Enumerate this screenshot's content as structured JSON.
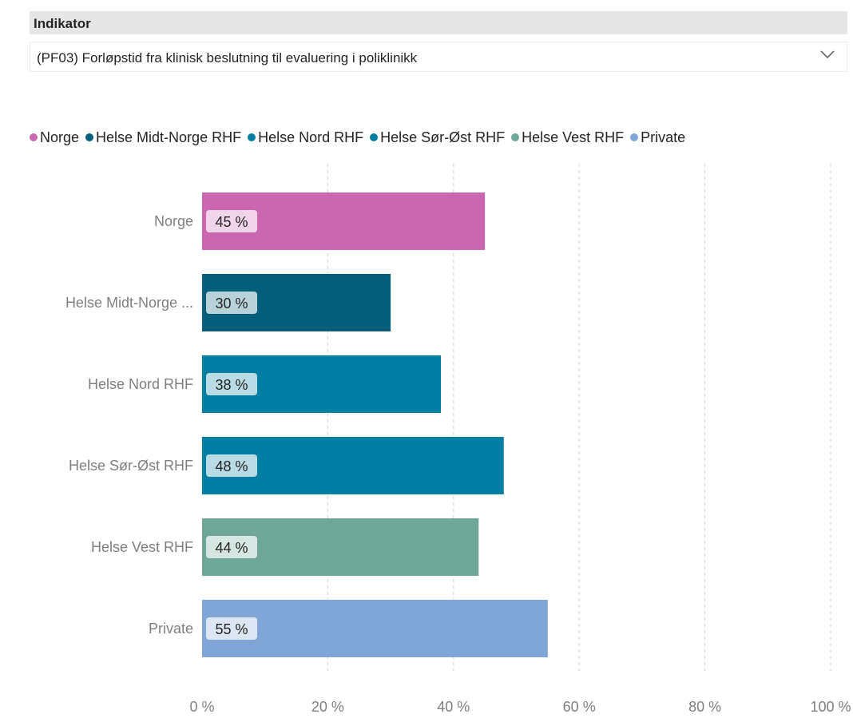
{
  "slicer": {
    "title": "Indikator",
    "selected": "(PF03) Forløpstid fra klinisk beslutning til evaluering i poliklinikk",
    "chevron_icon": "chevron-down-icon"
  },
  "legend": [
    {
      "label": "Norge",
      "color": "#cb67b0"
    },
    {
      "label": "Helse Midt-Norge RHF",
      "color": "#035e7b"
    },
    {
      "label": "Helse Nord RHF",
      "color": "#017fa3"
    },
    {
      "label": "Helse Sør-Øst RHF",
      "color": "#017fa3"
    },
    {
      "label": "Helse Vest RHF",
      "color": "#6ea697"
    },
    {
      "label": "Private",
      "color": "#80a6d8"
    }
  ],
  "chart_data": {
    "type": "bar",
    "orientation": "horizontal",
    "categories": [
      "Norge",
      "Helse Midt-Norge ...",
      "Helse Nord RHF",
      "Helse Sør-Øst RHF",
      "Helse Vest RHF",
      "Private"
    ],
    "values": [
      45,
      30,
      38,
      48,
      44,
      55
    ],
    "value_labels": [
      "45 %",
      "30 %",
      "38 %",
      "48 %",
      "44 %",
      "55 %"
    ],
    "colors": [
      "#cb67b0",
      "#035e7b",
      "#017fa3",
      "#017fa3",
      "#6ea697",
      "#80a6d8"
    ],
    "xlim": [
      0,
      100
    ],
    "x_ticks": [
      0,
      20,
      40,
      60,
      80,
      100
    ],
    "x_tick_labels": [
      "0 %",
      "20 %",
      "40 %",
      "60 %",
      "80 %",
      "100 %"
    ],
    "grid": true,
    "legend_position": "top-left"
  }
}
